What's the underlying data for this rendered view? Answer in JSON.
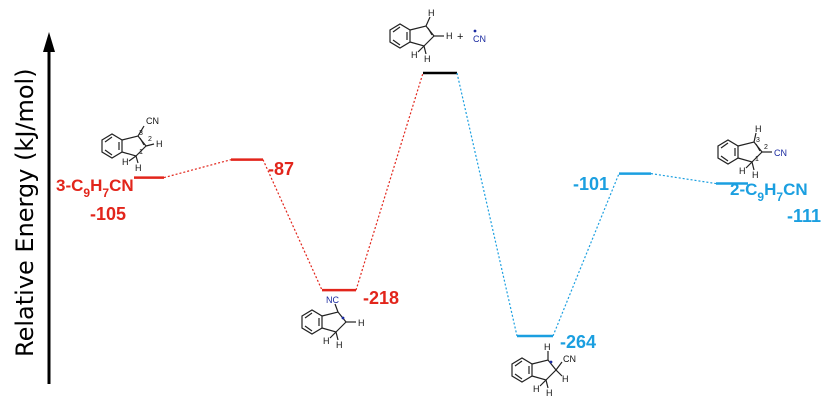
{
  "axis": {
    "ylabel": "Relative Energy (kJ/mol)"
  },
  "colors": {
    "left": "#e2251b",
    "right": "#1b9fe0",
    "reactant": "#000000",
    "radical": "#1a2aa0"
  },
  "levels": [
    {
      "id": "3-C9H7CN",
      "energy": -105,
      "label": "-105",
      "color": "#e2251b"
    },
    {
      "id": "TS-left",
      "energy": -87,
      "label": "-87",
      "color": "#e2251b"
    },
    {
      "id": "INT-left",
      "energy": -218,
      "label": "-218",
      "color": "#e2251b"
    },
    {
      "id": "reactants",
      "energy": 0,
      "label": "",
      "color": "#000000"
    },
    {
      "id": "INT-right",
      "energy": -264,
      "label": "-264",
      "color": "#1b9fe0"
    },
    {
      "id": "TS-right",
      "energy": -101,
      "label": "-101",
      "color": "#1b9fe0"
    },
    {
      "id": "2-C9H7CN",
      "energy": -111,
      "label": "-111",
      "color": "#1b9fe0"
    }
  ],
  "species": {
    "product3": {
      "main": "3-C",
      "sub1": "9",
      "mid": "H",
      "sub2": "7",
      "end": "CN"
    },
    "product2": {
      "main": "2-C",
      "sub1": "9",
      "mid": "H",
      "sub2": "7",
      "end": "CN"
    }
  },
  "molecules": {
    "plus": "+",
    "cn": "CN",
    "nc": "NC",
    "h": "H",
    "n1": "1",
    "n2": "2",
    "n3": "3"
  }
}
